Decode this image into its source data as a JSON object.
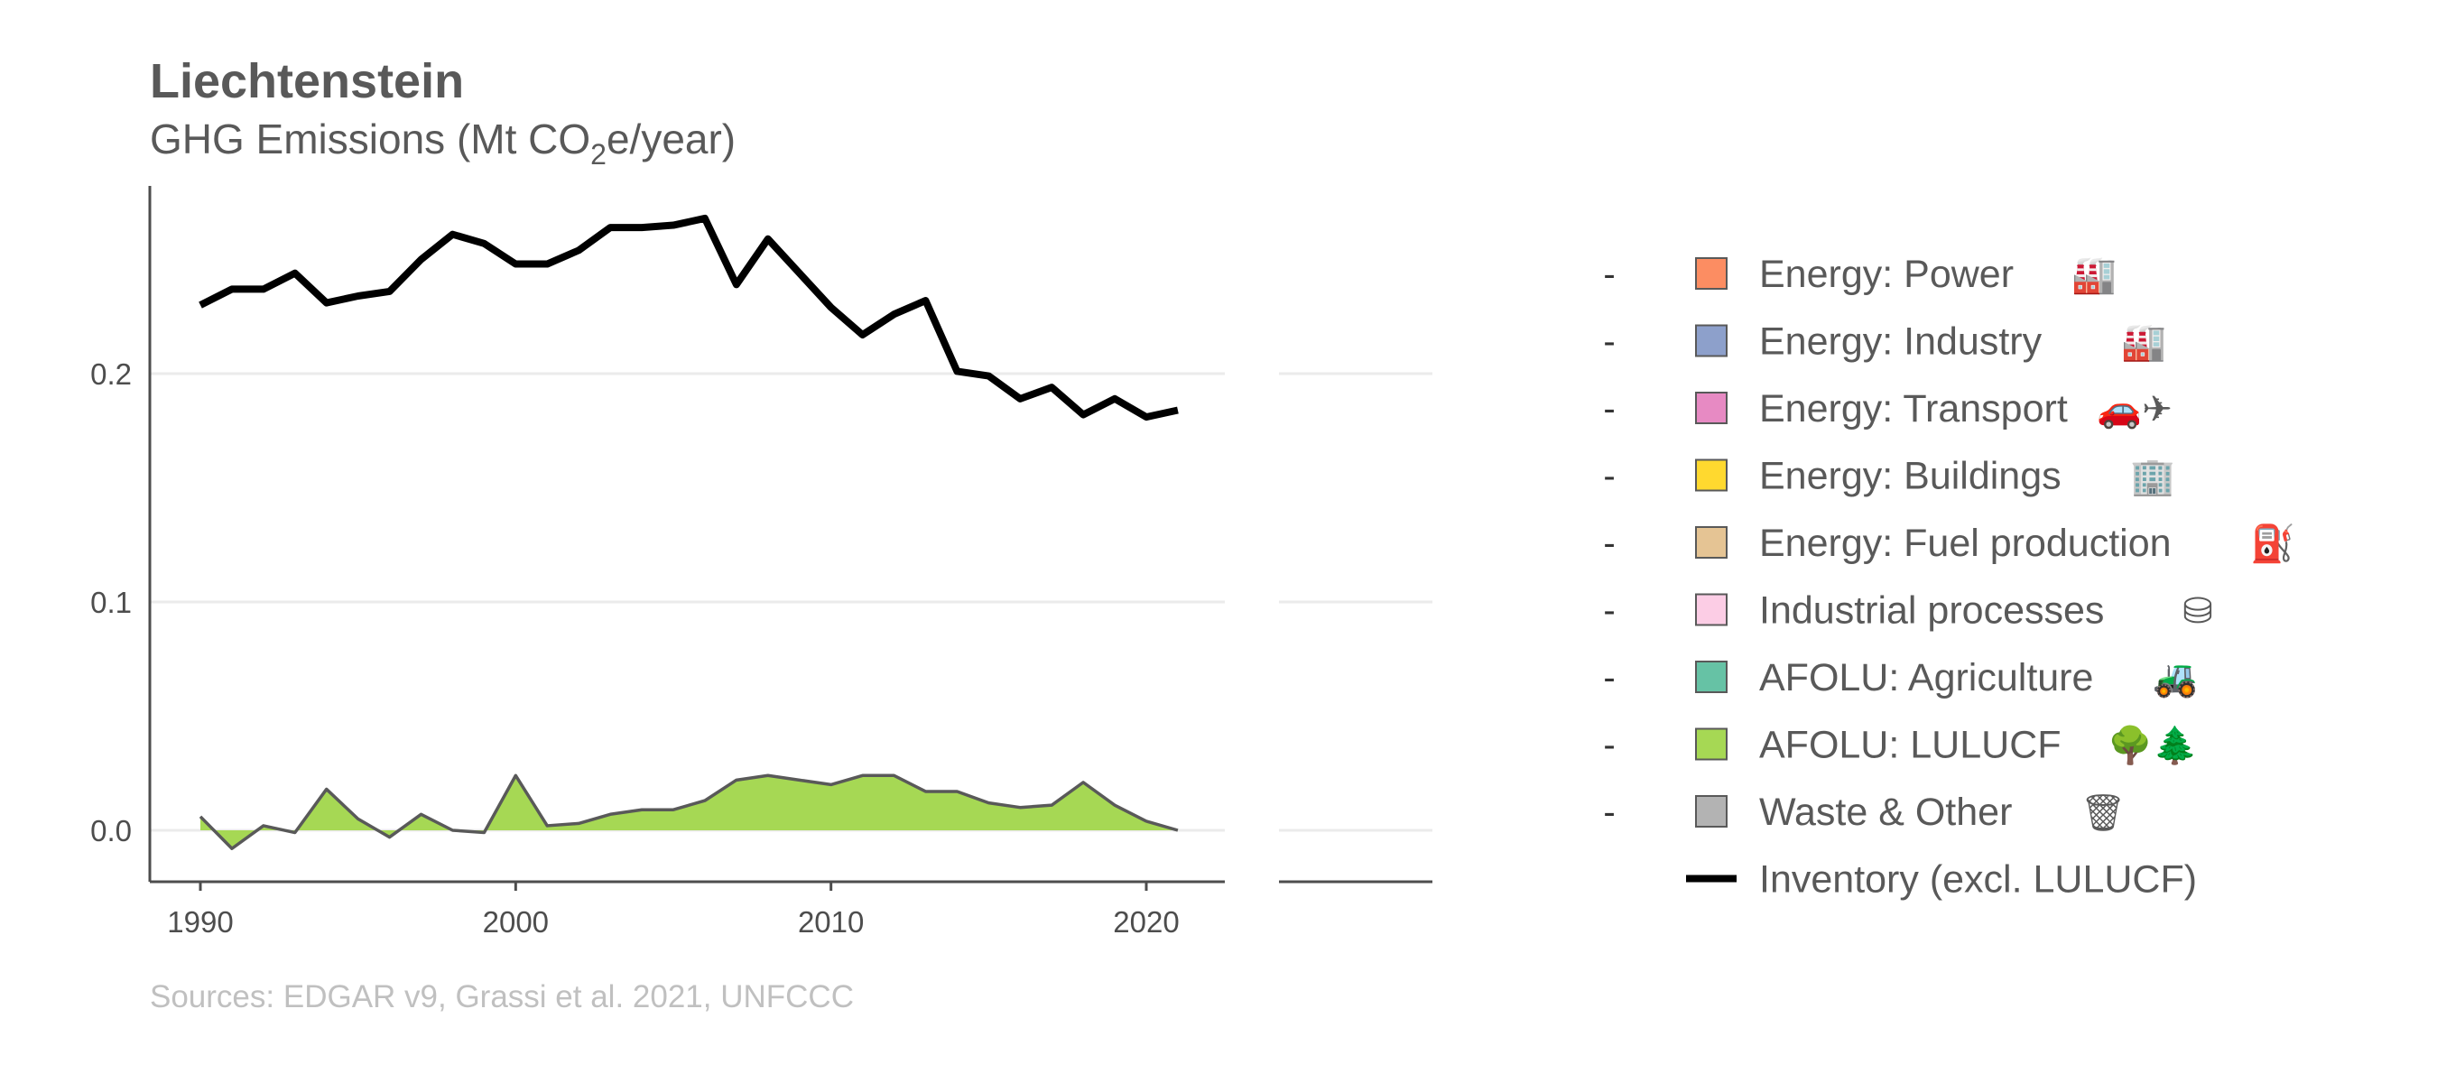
{
  "header": {
    "title": "Liechtenstein",
    "subtitle_pre": "GHG Emissions (Mt CO",
    "subtitle_sub": "2",
    "subtitle_post": "e/year)"
  },
  "source": "Sources: EDGAR v9, Grassi et al. 2021, UNFCCC",
  "legend": {
    "items": [
      {
        "label": "Energy: Power",
        "color": "#FC8D62",
        "icon": "power-plant-pylon-icon",
        "glyph": "🏭"
      },
      {
        "label": "Energy: Industry",
        "color": "#8DA0CB",
        "icon": "factory-icon",
        "glyph": "🏭"
      },
      {
        "label": "Energy: Transport",
        "color": "#E78AC3",
        "icon": "car-plane-icon",
        "glyph": "🚗✈"
      },
      {
        "label": "Energy: Buildings",
        "color": "#FFD92F",
        "icon": "buildings-icon",
        "glyph": "🏢"
      },
      {
        "label": "Energy: Fuel production",
        "color": "#E5C494",
        "icon": "oil-rig-icon",
        "glyph": "⛽"
      },
      {
        "label": "Industrial processes",
        "color": "#FCCDE5",
        "icon": "industrial-tank-icon",
        "glyph": "⛁"
      },
      {
        "label": "AFOLU: Agriculture",
        "color": "#66C2A5",
        "icon": "tractor-icon",
        "glyph": "🚜"
      },
      {
        "label": "AFOLU: LULUCF",
        "color": "#A6D854",
        "icon": "trees-icon",
        "glyph": "🌳🌲"
      },
      {
        "label": "Waste & Other",
        "color": "#B3B3B3",
        "icon": "trash-can-icon",
        "glyph": "🗑"
      }
    ],
    "line_item": {
      "label": "Inventory (excl. LULUCF)",
      "color": "#000000"
    },
    "dash": "-"
  },
  "chart_data": {
    "type": "area",
    "title": "Liechtenstein",
    "subtitle": "GHG Emissions (Mt CO2e/year)",
    "xlabel": "",
    "ylabel": "",
    "xlim": [
      1988.5,
      2022.5
    ],
    "ylim": [
      -0.022,
      0.282
    ],
    "x_ticks": [
      1990,
      2000,
      2010,
      2020
    ],
    "y_ticks": [
      0.0,
      0.1,
      0.2
    ],
    "y_tick_labels": [
      "0.0",
      "0.1",
      "0.2"
    ],
    "grid": true,
    "legend_position": "right",
    "x": [
      1990,
      1991,
      1992,
      1993,
      1994,
      1995,
      1996,
      1997,
      1998,
      1999,
      2000,
      2001,
      2002,
      2003,
      2004,
      2005,
      2006,
      2007,
      2008,
      2009,
      2010,
      2011,
      2012,
      2013,
      2014,
      2015,
      2016,
      2017,
      2018,
      2019,
      2020,
      2021
    ],
    "series": [
      {
        "name": "AFOLU: LULUCF",
        "kind": "area",
        "color": "#A6D854",
        "values": [
          0.006,
          -0.008,
          0.002,
          -0.001,
          0.018,
          0.005,
          -0.003,
          0.007,
          0.0,
          -0.001,
          0.024,
          0.002,
          0.003,
          0.007,
          0.009,
          0.009,
          0.013,
          0.022,
          0.024,
          0.022,
          0.02,
          0.024,
          0.024,
          0.017,
          0.017,
          0.012,
          0.01,
          0.011,
          0.021,
          0.011,
          0.004,
          0.0
        ]
      },
      {
        "name": "Inventory (excl. LULUCF)",
        "kind": "line",
        "color": "#000000",
        "values": [
          0.23,
          0.237,
          0.237,
          0.244,
          0.231,
          0.234,
          0.236,
          0.25,
          0.261,
          0.257,
          0.248,
          0.248,
          0.254,
          0.264,
          0.264,
          0.265,
          0.268,
          0.239,
          0.259,
          0.244,
          0.229,
          0.217,
          0.226,
          0.232,
          0.201,
          0.199,
          0.189,
          0.194,
          0.182,
          0.189,
          0.181,
          0.184
        ]
      }
    ]
  }
}
